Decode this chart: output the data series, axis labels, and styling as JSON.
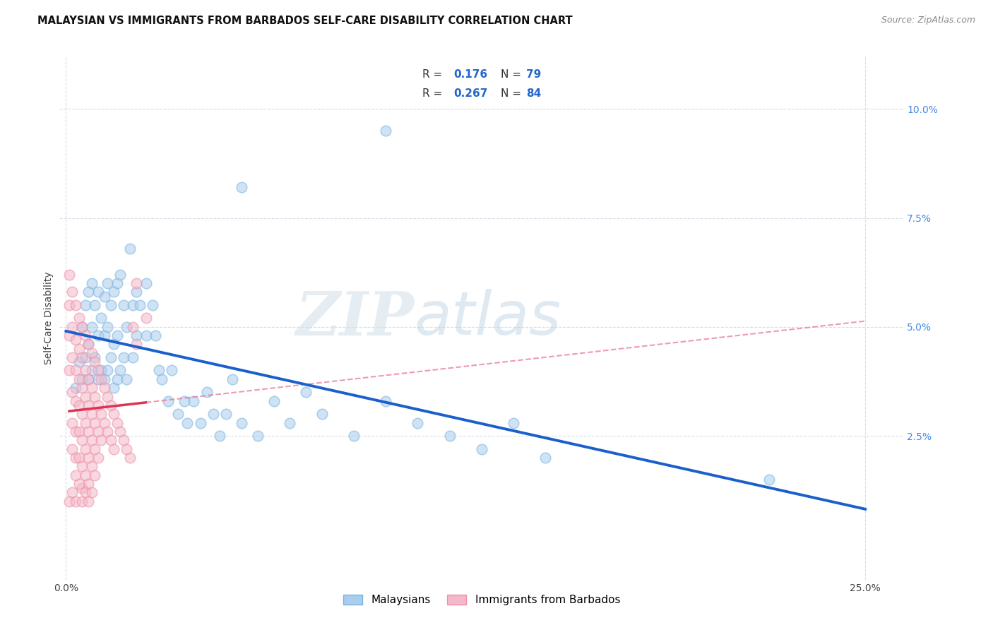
{
  "title": "MALAYSIAN VS IMMIGRANTS FROM BARBADOS SELF-CARE DISABILITY CORRELATION CHART",
  "source": "Source: ZipAtlas.com",
  "ylabel": "Self-Care Disability",
  "xlim": [
    -0.002,
    0.262
  ],
  "ylim": [
    -0.008,
    0.112
  ],
  "ytick_labels": [
    "2.5%",
    "5.0%",
    "7.5%",
    "10.0%"
  ],
  "ytick_positions": [
    0.025,
    0.05,
    0.075,
    0.1
  ],
  "xtick_labels": [
    "0.0%",
    "25.0%"
  ],
  "xtick_positions": [
    0.0,
    0.25
  ],
  "blue_edge_color": "#7ab5e0",
  "blue_fill_color": "#aaccee",
  "pink_edge_color": "#f090a8",
  "pink_fill_color": "#f4b8c8",
  "trend_blue_color": "#1a5fcc",
  "trend_pink_color": "#dd3355",
  "trend_pink_dash_color": "#e87090",
  "background_color": "#ffffff",
  "grid_color": "#d8dde8",
  "legend_r_blue": "0.176",
  "legend_n_blue": "79",
  "legend_r_pink": "0.267",
  "legend_n_pink": "84",
  "blue_scatter": [
    [
      0.003,
      0.036
    ],
    [
      0.004,
      0.042
    ],
    [
      0.005,
      0.05
    ],
    [
      0.005,
      0.038
    ],
    [
      0.006,
      0.055
    ],
    [
      0.006,
      0.043
    ],
    [
      0.007,
      0.058
    ],
    [
      0.007,
      0.046
    ],
    [
      0.007,
      0.038
    ],
    [
      0.008,
      0.06
    ],
    [
      0.008,
      0.05
    ],
    [
      0.008,
      0.04
    ],
    [
      0.009,
      0.055
    ],
    [
      0.009,
      0.043
    ],
    [
      0.01,
      0.058
    ],
    [
      0.01,
      0.048
    ],
    [
      0.01,
      0.038
    ],
    [
      0.011,
      0.052
    ],
    [
      0.011,
      0.04
    ],
    [
      0.012,
      0.057
    ],
    [
      0.012,
      0.048
    ],
    [
      0.012,
      0.038
    ],
    [
      0.013,
      0.06
    ],
    [
      0.013,
      0.05
    ],
    [
      0.013,
      0.04
    ],
    [
      0.014,
      0.055
    ],
    [
      0.014,
      0.043
    ],
    [
      0.015,
      0.058
    ],
    [
      0.015,
      0.046
    ],
    [
      0.015,
      0.036
    ],
    [
      0.016,
      0.06
    ],
    [
      0.016,
      0.048
    ],
    [
      0.016,
      0.038
    ],
    [
      0.017,
      0.062
    ],
    [
      0.017,
      0.04
    ],
    [
      0.018,
      0.055
    ],
    [
      0.018,
      0.043
    ],
    [
      0.019,
      0.05
    ],
    [
      0.019,
      0.038
    ],
    [
      0.02,
      0.068
    ],
    [
      0.021,
      0.055
    ],
    [
      0.021,
      0.043
    ],
    [
      0.022,
      0.058
    ],
    [
      0.022,
      0.048
    ],
    [
      0.023,
      0.055
    ],
    [
      0.025,
      0.06
    ],
    [
      0.025,
      0.048
    ],
    [
      0.027,
      0.055
    ],
    [
      0.028,
      0.048
    ],
    [
      0.029,
      0.04
    ],
    [
      0.03,
      0.038
    ],
    [
      0.032,
      0.033
    ],
    [
      0.033,
      0.04
    ],
    [
      0.035,
      0.03
    ],
    [
      0.037,
      0.033
    ],
    [
      0.038,
      0.028
    ],
    [
      0.04,
      0.033
    ],
    [
      0.042,
      0.028
    ],
    [
      0.044,
      0.035
    ],
    [
      0.046,
      0.03
    ],
    [
      0.048,
      0.025
    ],
    [
      0.05,
      0.03
    ],
    [
      0.052,
      0.038
    ],
    [
      0.055,
      0.028
    ],
    [
      0.06,
      0.025
    ],
    [
      0.065,
      0.033
    ],
    [
      0.07,
      0.028
    ],
    [
      0.075,
      0.035
    ],
    [
      0.08,
      0.03
    ],
    [
      0.09,
      0.025
    ],
    [
      0.1,
      0.033
    ],
    [
      0.11,
      0.028
    ],
    [
      0.12,
      0.025
    ],
    [
      0.13,
      0.022
    ],
    [
      0.14,
      0.028
    ],
    [
      0.15,
      0.02
    ],
    [
      0.22,
      0.015
    ],
    [
      0.055,
      0.082
    ],
    [
      0.1,
      0.095
    ]
  ],
  "pink_scatter": [
    [
      0.001,
      0.062
    ],
    [
      0.001,
      0.055
    ],
    [
      0.001,
      0.048
    ],
    [
      0.001,
      0.04
    ],
    [
      0.002,
      0.058
    ],
    [
      0.002,
      0.05
    ],
    [
      0.002,
      0.043
    ],
    [
      0.002,
      0.035
    ],
    [
      0.002,
      0.028
    ],
    [
      0.002,
      0.022
    ],
    [
      0.003,
      0.055
    ],
    [
      0.003,
      0.047
    ],
    [
      0.003,
      0.04
    ],
    [
      0.003,
      0.033
    ],
    [
      0.003,
      0.026
    ],
    [
      0.003,
      0.02
    ],
    [
      0.003,
      0.016
    ],
    [
      0.004,
      0.052
    ],
    [
      0.004,
      0.045
    ],
    [
      0.004,
      0.038
    ],
    [
      0.004,
      0.032
    ],
    [
      0.004,
      0.026
    ],
    [
      0.004,
      0.02
    ],
    [
      0.005,
      0.05
    ],
    [
      0.005,
      0.043
    ],
    [
      0.005,
      0.036
    ],
    [
      0.005,
      0.03
    ],
    [
      0.005,
      0.024
    ],
    [
      0.005,
      0.018
    ],
    [
      0.005,
      0.013
    ],
    [
      0.006,
      0.048
    ],
    [
      0.006,
      0.04
    ],
    [
      0.006,
      0.034
    ],
    [
      0.006,
      0.028
    ],
    [
      0.006,
      0.022
    ],
    [
      0.006,
      0.016
    ],
    [
      0.007,
      0.046
    ],
    [
      0.007,
      0.038
    ],
    [
      0.007,
      0.032
    ],
    [
      0.007,
      0.026
    ],
    [
      0.007,
      0.02
    ],
    [
      0.007,
      0.014
    ],
    [
      0.008,
      0.044
    ],
    [
      0.008,
      0.036
    ],
    [
      0.008,
      0.03
    ],
    [
      0.008,
      0.024
    ],
    [
      0.008,
      0.018
    ],
    [
      0.009,
      0.042
    ],
    [
      0.009,
      0.034
    ],
    [
      0.009,
      0.028
    ],
    [
      0.009,
      0.022
    ],
    [
      0.009,
      0.016
    ],
    [
      0.01,
      0.04
    ],
    [
      0.01,
      0.032
    ],
    [
      0.01,
      0.026
    ],
    [
      0.01,
      0.02
    ],
    [
      0.011,
      0.038
    ],
    [
      0.011,
      0.03
    ],
    [
      0.011,
      0.024
    ],
    [
      0.012,
      0.036
    ],
    [
      0.012,
      0.028
    ],
    [
      0.013,
      0.034
    ],
    [
      0.013,
      0.026
    ],
    [
      0.014,
      0.032
    ],
    [
      0.014,
      0.024
    ],
    [
      0.015,
      0.03
    ],
    [
      0.015,
      0.022
    ],
    [
      0.016,
      0.028
    ],
    [
      0.017,
      0.026
    ],
    [
      0.018,
      0.024
    ],
    [
      0.019,
      0.022
    ],
    [
      0.02,
      0.02
    ],
    [
      0.021,
      0.05
    ],
    [
      0.022,
      0.046
    ],
    [
      0.022,
      0.06
    ],
    [
      0.025,
      0.052
    ],
    [
      0.001,
      0.01
    ],
    [
      0.002,
      0.012
    ],
    [
      0.003,
      0.01
    ],
    [
      0.004,
      0.014
    ],
    [
      0.005,
      0.01
    ],
    [
      0.006,
      0.012
    ],
    [
      0.007,
      0.01
    ],
    [
      0.008,
      0.012
    ]
  ]
}
